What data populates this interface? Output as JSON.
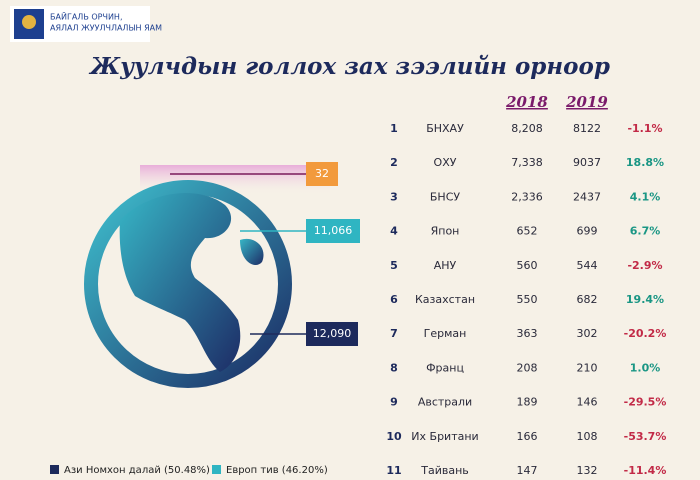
{
  "header": {
    "ministry": [
      "БАЙГАЛЬ ОРЧИН,",
      "АЯЛАЛ ЖУУЛЧЛАЛЫН ЯАМ"
    ]
  },
  "title": "Жуулчдын голлох зах зээлийн орноор",
  "callouts": [
    "32",
    "11,066",
    "12,090"
  ],
  "legend": [
    "Ази Номхон далай (50.48%)",
    "Европ тив (46.20%)"
  ],
  "table": {
    "columns": [
      "2018",
      "2019"
    ],
    "rows": [
      [
        "1",
        "БНХАУ",
        "8,208",
        "8122",
        "-1.1%"
      ],
      [
        "2",
        "ОХУ",
        "7,338",
        "9037",
        "18.8%"
      ],
      [
        "3",
        "БНСУ",
        "2,336",
        "2437",
        "4.1%"
      ],
      [
        "4",
        "Япон",
        "652",
        "699",
        "6.7%"
      ],
      [
        "5",
        "АНУ",
        "560",
        "544",
        "-2.9%"
      ],
      [
        "6",
        "Казахстан",
        "550",
        "682",
        "19.4%"
      ],
      [
        "7",
        "Герман",
        "363",
        "302",
        "-20.2%"
      ],
      [
        "8",
        "Франц",
        "208",
        "210",
        "1.0%"
      ],
      [
        "9",
        "Австрали",
        "189",
        "146",
        "-29.5%"
      ],
      [
        "10",
        "Их Британи",
        "166",
        "108",
        "-53.7%"
      ],
      [
        "11",
        "Тайвань",
        "147",
        "132",
        "-11.4%"
      ]
    ]
  }
}
